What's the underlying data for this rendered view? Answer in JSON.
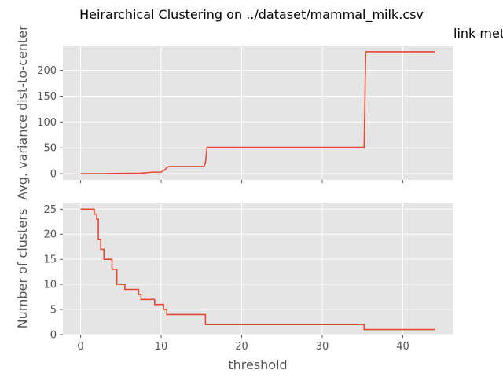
{
  "chart_data": {
    "type": "line",
    "title": "Heirarchical Clustering on ../dataset/mammal_milk.csv",
    "subtitle": "link met",
    "line_color": "#e24a33",
    "panel_bg": "#e5e5e5",
    "grid": true,
    "xlabel": "threshold",
    "xlim": [
      -2.2,
      46.2
    ],
    "xticks": [
      0,
      10,
      20,
      30,
      40
    ],
    "panels": [
      {
        "ylabel": "Avg. variance dist-to-center",
        "ylim": [
          -12,
          248
        ],
        "yticks": [
          0,
          50,
          100,
          150,
          200
        ],
        "show_xtick_labels": false,
        "series": [
          {
            "x": [
              0,
              2,
              4,
              7.5,
              9,
              10,
              10.5,
              10.7,
              11,
              15.3,
              15.5,
              15.7,
              35.2,
              35.4,
              44
            ],
            "y": [
              0,
              0,
              0.5,
              1,
              3,
              3,
              8,
              12,
              14,
              14,
              20,
              51,
              51,
              236,
              236
            ]
          }
        ]
      },
      {
        "ylabel": "Number of clusters",
        "ylim": [
          0,
          26.3
        ],
        "yticks": [
          0,
          5,
          10,
          15,
          20,
          25
        ],
        "show_xtick_labels": true,
        "series": [
          {
            "x": [
              0,
              1.7,
              1.7,
              2.0,
              2.0,
              2.2,
              2.2,
              2.5,
              2.5,
              2.9,
              2.9,
              3.2,
              3.2,
              3.9,
              3.9,
              4.5,
              4.5,
              5.5,
              5.5,
              7.2,
              7.2,
              7.5,
              7.5,
              9.2,
              9.2,
              10.3,
              10.3,
              10.7,
              10.7,
              15.5,
              15.5,
              35.2,
              35.2,
              44
            ],
            "y": [
              25,
              25,
              24,
              24,
              23,
              23,
              19,
              19,
              17,
              17,
              15,
              15,
              15,
              15,
              13,
              13,
              10,
              10,
              9,
              9,
              8,
              8,
              7,
              7,
              6,
              6,
              5,
              5,
              4,
              4,
              2,
              2,
              1,
              1
            ]
          }
        ]
      }
    ]
  }
}
